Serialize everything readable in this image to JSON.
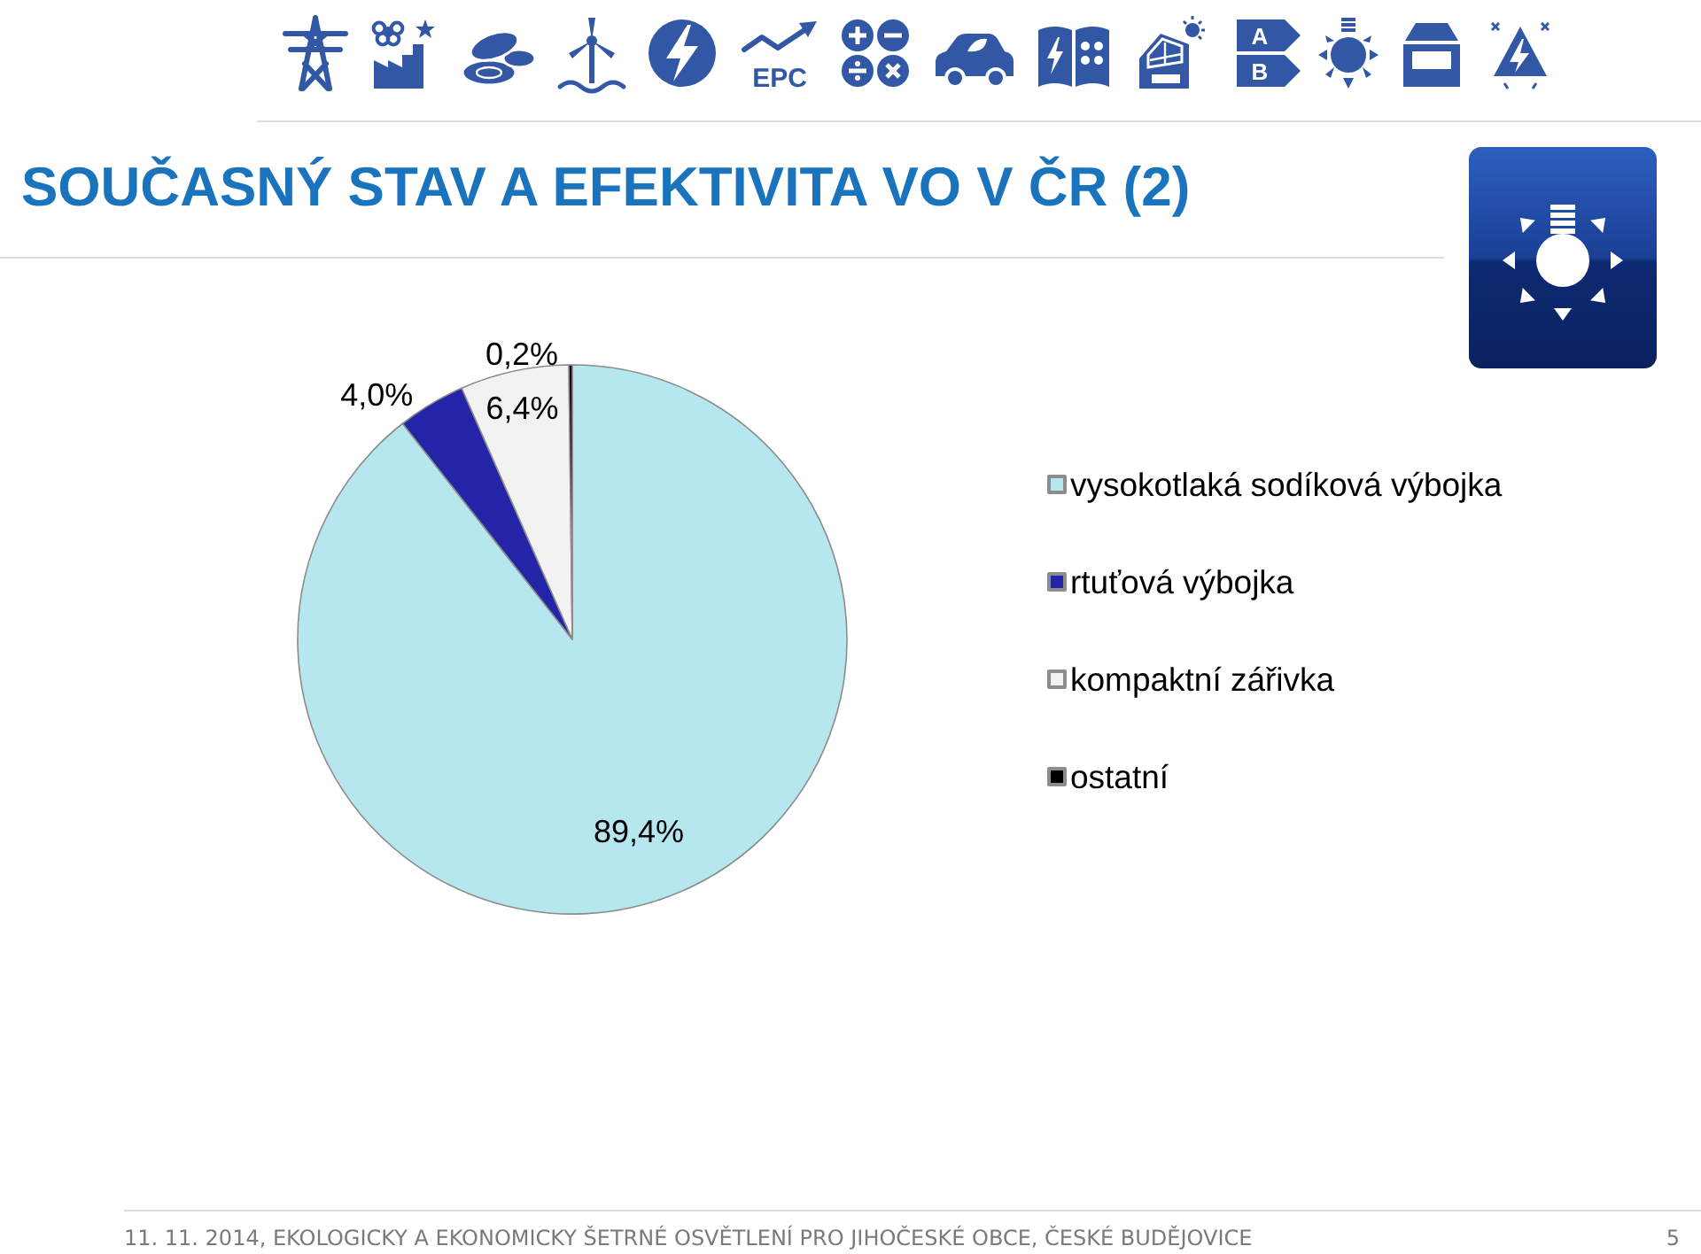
{
  "chart_data": {
    "type": "pie",
    "title": "SOUČASNÝ STAV A EFEKTIVITA VO V ČR (2)",
    "categories": [
      "vysokotlaká sodíková výbojka",
      "rtuťová výbojka",
      "kompaktní zářivka",
      "ostatní"
    ],
    "values": [
      89.4,
      4.0,
      6.4,
      0.2
    ],
    "colors": [
      "#b6e6ee",
      "#2424a8",
      "#f2f2f2",
      "#000000"
    ],
    "value_labels": [
      "89,4%",
      "4,0%",
      "6,4%",
      "0,2%"
    ],
    "legend": "right",
    "annotations": [
      "11. 11. 2014, EKOLOGICKY A EKONOMICKY ŠETRNÉ OSVĚTLENÍ PRO JIHOČESKÉ OBCE, ČESKÉ BUDĚJOVICE",
      "5",
      "EPC",
      "A",
      "B"
    ]
  }
}
